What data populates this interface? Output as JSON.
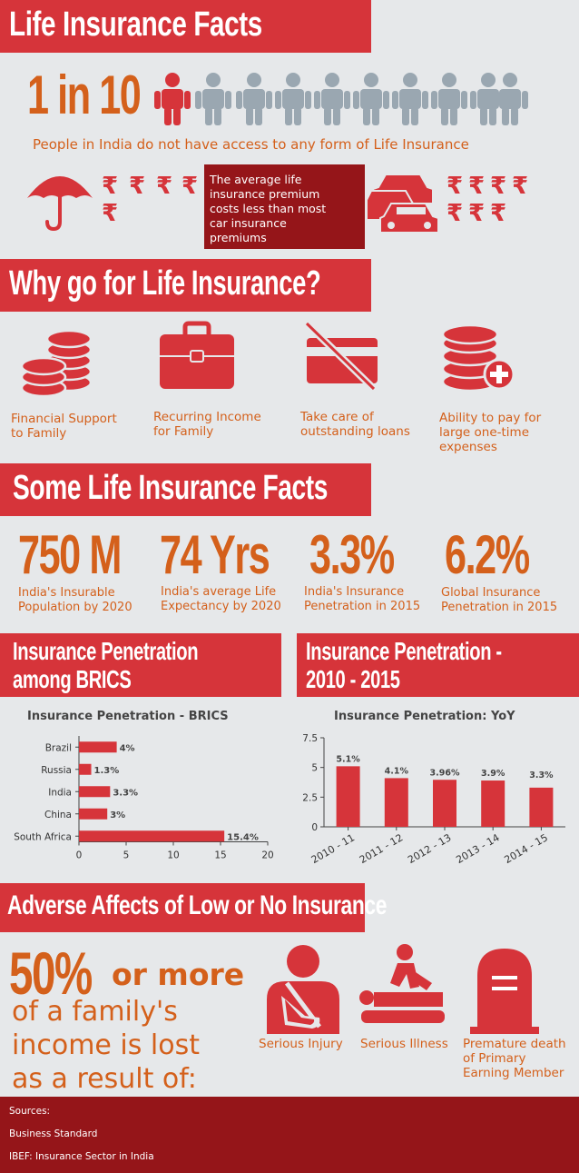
{
  "section1": {
    "title": "Life Insurance Facts",
    "ratio": "1 in 10",
    "subtitle": "People in India do not have access to any form of Life Insurance",
    "rupee": "₹",
    "premium_note": "The average life insurance premium costs less than most car insurance premiums"
  },
  "section2": {
    "title": "Why go for Life Insurance?",
    "reasons": [
      {
        "label": "Financial Support to Family",
        "icon": "coins-icon"
      },
      {
        "label": "Recurring Income for Family",
        "icon": "briefcase-icon"
      },
      {
        "label": "Take care of outstanding loans",
        "icon": "credit-card-crossed-icon"
      },
      {
        "label": "Ability to pay for large one-time expenses",
        "icon": "coins-plus-icon"
      }
    ]
  },
  "section3": {
    "title": "Some Life Insurance Facts",
    "stats": [
      {
        "value": "750 M",
        "label": "India's Insurable Population by 2020"
      },
      {
        "value": "74 Yrs",
        "label": "India's average Life Expectancy by 2020"
      },
      {
        "value": "3.3%",
        "label": "India's Insurance Penetration in 2015"
      },
      {
        "value": "6.2%",
        "label": "Global Insurance Penetration in 2015"
      }
    ]
  },
  "section4": {
    "left_banner": "Insurance Penetration among BRICS",
    "right_banner": "Insurance Penetration - 2010 - 2015"
  },
  "chart_data": [
    {
      "type": "bar",
      "orientation": "horizontal",
      "title": "Insurance Penetration - BRICS",
      "categories": [
        "Brazil",
        "Russia",
        "India",
        "China",
        "South Africa"
      ],
      "values": [
        4,
        1.3,
        3.3,
        3,
        15.4
      ],
      "value_labels": [
        "4%",
        "1.3%",
        "3.3%",
        "3%",
        "15.4%"
      ],
      "xlim": [
        0,
        20
      ],
      "xticks": [
        "0",
        "5",
        "10",
        "15",
        "20"
      ],
      "color": "#d6343a"
    },
    {
      "type": "bar",
      "title": "Insurance Penetration: YoY",
      "categories": [
        "2010 - 11",
        "2011 - 12",
        "2012 - 13",
        "2013 - 14",
        "2014 - 15"
      ],
      "values": [
        5.1,
        4.1,
        3.96,
        3.9,
        3.3
      ],
      "value_labels": [
        "5.1%",
        "4.1%",
        "3.96%",
        "3.9%",
        "3.3%"
      ],
      "ylim": [
        0,
        7.5
      ],
      "yticks": [
        "0",
        "2.5",
        "5",
        "7.5"
      ],
      "color": "#d6343a"
    }
  ],
  "section5": {
    "title": "Adverse Affects of Low or No Insurance",
    "percent": "50%",
    "or_more": "or more",
    "line1": "of a family's",
    "line2": "income is lost",
    "line3": "as a result of:",
    "causes": [
      {
        "label": "Serious Injury",
        "icon": "injured-arm-icon"
      },
      {
        "label": "Serious Illness",
        "icon": "patient-massage-icon"
      },
      {
        "label": "Premature death of Primary Earning Member",
        "icon": "tombstone-icon"
      }
    ]
  },
  "footer": {
    "heading": "Sources:",
    "source1": "Business Standard",
    "source2": "IBEF: Insurance Sector in India"
  }
}
